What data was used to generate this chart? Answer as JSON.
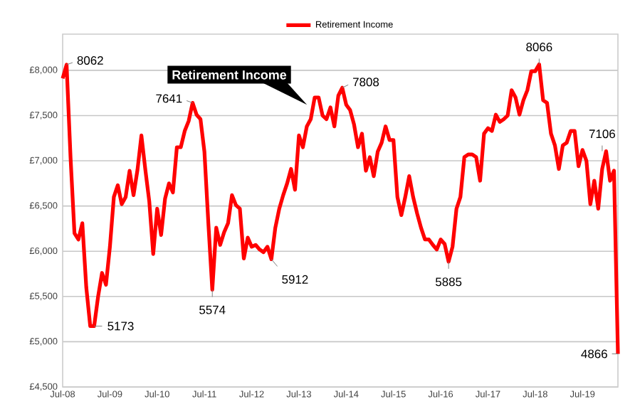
{
  "chart_data": {
    "type": "line",
    "x": [
      "2008-07",
      "2008-08",
      "2008-09",
      "2008-10",
      "2008-11",
      "2008-12",
      "2009-01",
      "2009-02",
      "2009-03",
      "2009-04",
      "2009-05",
      "2009-06",
      "2009-07",
      "2009-08",
      "2009-09",
      "2009-10",
      "2009-11",
      "2009-12",
      "2010-01",
      "2010-02",
      "2010-03",
      "2010-04",
      "2010-05",
      "2010-06",
      "2010-07",
      "2010-08",
      "2010-09",
      "2010-10",
      "2010-11",
      "2010-12",
      "2011-01",
      "2011-02",
      "2011-03",
      "2011-04",
      "2011-05",
      "2011-06",
      "2011-07",
      "2011-08",
      "2011-09",
      "2011-10",
      "2011-11",
      "2011-12",
      "2012-01",
      "2012-02",
      "2012-03",
      "2012-04",
      "2012-05",
      "2012-06",
      "2012-07",
      "2012-08",
      "2012-09",
      "2012-10",
      "2012-11",
      "2012-12",
      "2013-01",
      "2013-02",
      "2013-03",
      "2013-04",
      "2013-05",
      "2013-06",
      "2013-07",
      "2013-08",
      "2013-09",
      "2013-10",
      "2013-11",
      "2013-12",
      "2014-01",
      "2014-02",
      "2014-03",
      "2014-04",
      "2014-05",
      "2014-06",
      "2014-07",
      "2014-08",
      "2014-09",
      "2014-10",
      "2014-11",
      "2014-12",
      "2015-01",
      "2015-02",
      "2015-03",
      "2015-04",
      "2015-05",
      "2015-06",
      "2015-07",
      "2015-08",
      "2015-09",
      "2015-10",
      "2015-11",
      "2015-12",
      "2016-01",
      "2016-02",
      "2016-03",
      "2016-04",
      "2016-05",
      "2016-06",
      "2016-07",
      "2016-08",
      "2016-09",
      "2016-10",
      "2016-11",
      "2016-12",
      "2017-01",
      "2017-02",
      "2017-03",
      "2017-04",
      "2017-05",
      "2017-06",
      "2017-07",
      "2017-08",
      "2017-09",
      "2017-10",
      "2017-11",
      "2017-12",
      "2018-01",
      "2018-02",
      "2018-03",
      "2018-04",
      "2018-05",
      "2018-06",
      "2018-07",
      "2018-08",
      "2018-09",
      "2018-10",
      "2018-11",
      "2018-12",
      "2019-01",
      "2019-02",
      "2019-03",
      "2019-04",
      "2019-05",
      "2019-06",
      "2019-07",
      "2019-08",
      "2019-09",
      "2019-10",
      "2019-11",
      "2019-12",
      "2020-01",
      "2020-02",
      "2020-03",
      "2020-04"
    ],
    "series": [
      {
        "name": "Retirement Income",
        "color": "#ff0000",
        "values": [
          7910,
          8062,
          7040,
          6200,
          6130,
          6310,
          5600,
          5173,
          5173,
          5500,
          5760,
          5630,
          6050,
          6600,
          6730,
          6520,
          6600,
          6890,
          6620,
          6900,
          7280,
          6900,
          6550,
          5970,
          6470,
          6180,
          6580,
          6750,
          6650,
          7150,
          7150,
          7330,
          7440,
          7641,
          7510,
          7460,
          7100,
          6310,
          5574,
          6260,
          6070,
          6210,
          6310,
          6620,
          6510,
          6470,
          5920,
          6150,
          6050,
          6070,
          6020,
          5990,
          6050,
          5912,
          6260,
          6470,
          6620,
          6750,
          6910,
          6680,
          7280,
          7150,
          7380,
          7460,
          7700,
          7700,
          7500,
          7460,
          7590,
          7380,
          7720,
          7808,
          7620,
          7560,
          7400,
          7150,
          7300,
          6890,
          7040,
          6830,
          7100,
          7200,
          7380,
          7230,
          7230,
          6600,
          6400,
          6600,
          6830,
          6600,
          6420,
          6260,
          6130,
          6130,
          6070,
          6020,
          6130,
          6080,
          5885,
          6050,
          6470,
          6600,
          7040,
          7070,
          7070,
          7040,
          6780,
          7300,
          7360,
          7330,
          7510,
          7430,
          7460,
          7500,
          7780,
          7700,
          7510,
          7670,
          7780,
          7990,
          7990,
          8066,
          7670,
          7640,
          7300,
          7170,
          6910,
          7170,
          7200,
          7330,
          7330,
          6940,
          7120,
          7000,
          6520,
          6780,
          6470,
          6910,
          7106,
          6780,
          6890,
          4866
        ]
      }
    ],
    "xlim": [
      "2008-07",
      "2020-04"
    ],
    "xticks": [
      {
        "value": "2008-07",
        "label": "Jul-08"
      },
      {
        "value": "2009-07",
        "label": "Jul-09"
      },
      {
        "value": "2010-07",
        "label": "Jul-10"
      },
      {
        "value": "2011-07",
        "label": "Jul-11"
      },
      {
        "value": "2012-07",
        "label": "Jul-12"
      },
      {
        "value": "2013-07",
        "label": "Jul-13"
      },
      {
        "value": "2014-07",
        "label": "Jul-14"
      },
      {
        "value": "2015-07",
        "label": "Jul-15"
      },
      {
        "value": "2016-07",
        "label": "Jul-16"
      },
      {
        "value": "2017-07",
        "label": "Jul-17"
      },
      {
        "value": "2018-07",
        "label": "Jul-18"
      },
      {
        "value": "2019-07",
        "label": "Jul-19"
      }
    ],
    "ylim": [
      4500,
      8400
    ],
    "yticks": [
      {
        "value": 4500,
        "label": "£4,500"
      },
      {
        "value": 5000,
        "label": "£5,000"
      },
      {
        "value": 5500,
        "label": "£5,500"
      },
      {
        "value": 6000,
        "label": "£6,000"
      },
      {
        "value": 6500,
        "label": "£6,500"
      },
      {
        "value": 7000,
        "label": "£7,000"
      },
      {
        "value": 7500,
        "label": "£7,500"
      },
      {
        "value": 8000,
        "label": "£8,000"
      }
    ],
    "grid": "y",
    "legend": "top",
    "marker": "none",
    "line_style": "solid",
    "annotations": [
      {
        "text": "8062",
        "x": "2008-08",
        "y": 8062
      },
      {
        "text": "5173",
        "x": "2009-03",
        "y": 5173
      },
      {
        "text": "7641",
        "x": "2011-04",
        "y": 7641
      },
      {
        "text": "5574",
        "x": "2011-09",
        "y": 5574
      },
      {
        "text": "5912",
        "x": "2012-12",
        "y": 5912
      },
      "Retirement Income",
      {
        "text": "7808",
        "x": "2014-06",
        "y": 7808
      },
      {
        "text": "5885",
        "x": "2016-09",
        "y": 5885
      },
      {
        "text": "8066",
        "x": "2018-08",
        "y": 8066
      },
      {
        "text": "7106",
        "x": "2019-12",
        "y": 7106
      },
      {
        "text": "4866",
        "x": "2020-04",
        "y": 4866
      }
    ]
  }
}
